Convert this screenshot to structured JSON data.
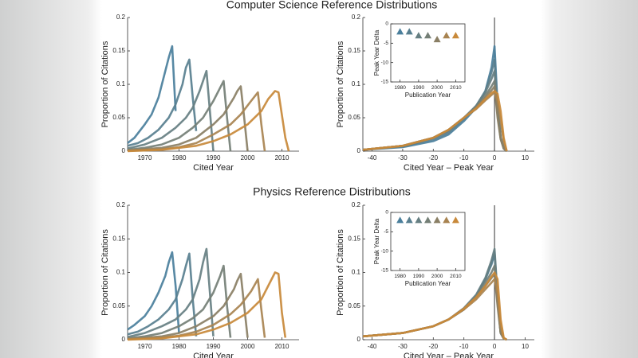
{
  "headings": [
    "Computer Science Reference Distributions",
    "Physics Reference Distributions"
  ],
  "chart_data": [
    {
      "type": "line",
      "ylabel": "Proportion of Citations",
      "xlabel": "Cited Year",
      "xlim": [
        1965,
        2015
      ],
      "xticks": [
        1970,
        1980,
        1990,
        2000,
        2010
      ],
      "ylim": [
        0,
        0.2
      ],
      "yticks": [
        0,
        0.05,
        0.1,
        0.15,
        0.2
      ],
      "series": [
        {
          "color": "#4a7f9c",
          "x": [
            1965,
            1967,
            1970,
            1972,
            1974,
            1976,
            1977,
            1978,
            1979
          ],
          "values": [
            0.012,
            0.02,
            0.04,
            0.055,
            0.08,
            0.12,
            0.14,
            0.157,
            0.06
          ]
        },
        {
          "color": "#587f8f",
          "x": [
            1965,
            1968,
            1971,
            1974,
            1977,
            1979,
            1981,
            1982,
            1983,
            1984,
            1985
          ],
          "values": [
            0.008,
            0.012,
            0.02,
            0.032,
            0.05,
            0.07,
            0.1,
            0.125,
            0.137,
            0.08,
            0.03
          ]
        },
        {
          "color": "#667f82",
          "x": [
            1965,
            1970,
            1975,
            1979,
            1982,
            1984,
            1986,
            1987,
            1988,
            1989,
            1990
          ],
          "values": [
            0.004,
            0.01,
            0.02,
            0.035,
            0.05,
            0.065,
            0.09,
            0.105,
            0.12,
            0.06,
            0
          ]
        },
        {
          "color": "#747f76",
          "x": [
            1965,
            1970,
            1975,
            1980,
            1984,
            1987,
            1990,
            1992,
            1993,
            1994,
            1995
          ],
          "values": [
            0.002,
            0.005,
            0.01,
            0.02,
            0.035,
            0.05,
            0.075,
            0.095,
            0.105,
            0.05,
            0
          ]
        },
        {
          "color": "#8a7f65",
          "x": [
            1965,
            1975,
            1980,
            1985,
            1990,
            1993,
            1996,
            1997,
            1998,
            1999,
            2000
          ],
          "values": [
            0.001,
            0.005,
            0.01,
            0.02,
            0.04,
            0.055,
            0.08,
            0.09,
            0.097,
            0.05,
            0
          ]
        },
        {
          "color": "#a88350",
          "x": [
            1965,
            1975,
            1980,
            1985,
            1990,
            1995,
            1998,
            2001,
            2003,
            2004,
            2005
          ],
          "values": [
            0.001,
            0.003,
            0.006,
            0.012,
            0.025,
            0.04,
            0.055,
            0.075,
            0.088,
            0.04,
            0
          ]
        },
        {
          "color": "#c8893a",
          "x": [
            1965,
            1975,
            1985,
            1990,
            1995,
            2000,
            2004,
            2006,
            2008,
            2009,
            2011,
            2012
          ],
          "values": [
            0,
            0.002,
            0.008,
            0.015,
            0.025,
            0.04,
            0.06,
            0.078,
            0.09,
            0.088,
            0.02,
            0
          ]
        }
      ]
    },
    {
      "type": "line",
      "ylabel": "Proportion of Citations",
      "xlabel": "Cited Year – Peak Year",
      "xlim": [
        -43,
        13
      ],
      "xticks": [
        -40,
        -30,
        -20,
        -10,
        0,
        10
      ],
      "ylim": [
        0,
        0.2
      ],
      "yticks": [
        0,
        0.05,
        0.1,
        0.15,
        0.2
      ],
      "vline": 0,
      "x": [
        -43,
        -30,
        -20,
        -15,
        -10,
        -6,
        -3,
        -1,
        0,
        1,
        2,
        3,
        4
      ],
      "series": [
        {
          "color": "#4a7f9c",
          "values": [
            0.002,
            0.006,
            0.015,
            0.025,
            0.045,
            0.065,
            0.09,
            0.125,
            0.157,
            0.07,
            0.02,
            0.005,
            0
          ]
        },
        {
          "color": "#587f8f",
          "values": [
            0.002,
            0.007,
            0.018,
            0.028,
            0.048,
            0.068,
            0.09,
            0.118,
            0.137,
            0.065,
            0.02,
            0.005,
            0
          ]
        },
        {
          "color": "#667f82",
          "values": [
            0.002,
            0.008,
            0.02,
            0.03,
            0.05,
            0.068,
            0.088,
            0.108,
            0.12,
            0.06,
            0.02,
            0.004,
            0
          ]
        },
        {
          "color": "#747f76",
          "values": [
            0.002,
            0.008,
            0.02,
            0.032,
            0.05,
            0.066,
            0.083,
            0.097,
            0.105,
            0.055,
            0.018,
            0.004,
            0
          ]
        },
        {
          "color": "#8a7f65",
          "values": [
            0.002,
            0.008,
            0.02,
            0.032,
            0.05,
            0.065,
            0.08,
            0.091,
            0.097,
            0.05,
            0.018,
            0.004,
            0
          ]
        },
        {
          "color": "#a88350",
          "values": [
            0.002,
            0.008,
            0.02,
            0.032,
            0.05,
            0.063,
            0.076,
            0.084,
            0.088,
            0.075,
            0.045,
            0.015,
            0
          ]
        },
        {
          "color": "#c8893a",
          "values": [
            0.002,
            0.008,
            0.02,
            0.032,
            0.05,
            0.064,
            0.078,
            0.087,
            0.09,
            0.086,
            0.06,
            0.02,
            0
          ]
        }
      ]
    },
    {
      "type": "scatter",
      "ylabel": "Peak Year Delta",
      "xlabel": "Publication Year",
      "xlim": [
        1975,
        2015
      ],
      "xticks": [
        1980,
        1990,
        2000,
        2010
      ],
      "ylim": [
        -15,
        0
      ],
      "yticks": [
        0,
        -5,
        -10,
        -15
      ],
      "x": [
        1980,
        1985,
        1990,
        1995,
        2000,
        2005,
        2010
      ],
      "values": [
        -2,
        -2,
        -3,
        -3,
        -4,
        -3,
        -3
      ],
      "colors": [
        "#4a7f9c",
        "#587f8f",
        "#667f82",
        "#747f76",
        "#8a7f65",
        "#a88350",
        "#c8893a"
      ]
    },
    {
      "type": "line",
      "ylabel": "Proportion of Citations",
      "xlabel": "Cited Year",
      "xlim": [
        1965,
        2015
      ],
      "xticks": [
        1970,
        1980,
        1990,
        2000,
        2010
      ],
      "ylim": [
        0,
        0.2
      ],
      "yticks": [
        0,
        0.05,
        0.1,
        0.15,
        0.2
      ],
      "series": [
        {
          "color": "#4a7f9c",
          "x": [
            1965,
            1967,
            1970,
            1972,
            1974,
            1976,
            1977,
            1978,
            1979,
            1980
          ],
          "values": [
            0.015,
            0.022,
            0.035,
            0.05,
            0.07,
            0.095,
            0.115,
            0.13,
            0.08,
            0.01
          ]
        },
        {
          "color": "#587f8f",
          "x": [
            1965,
            1968,
            1971,
            1974,
            1977,
            1979,
            1981,
            1982,
            1983,
            1984,
            1985
          ],
          "values": [
            0.008,
            0.012,
            0.02,
            0.03,
            0.045,
            0.06,
            0.09,
            0.11,
            0.128,
            0.06,
            0.005
          ]
        },
        {
          "color": "#667f82",
          "x": [
            1965,
            1970,
            1975,
            1979,
            1982,
            1984,
            1986,
            1987,
            1988,
            1989,
            1990
          ],
          "values": [
            0.004,
            0.01,
            0.02,
            0.03,
            0.045,
            0.06,
            0.09,
            0.115,
            0.135,
            0.07,
            0.005
          ]
        },
        {
          "color": "#747f76",
          "x": [
            1965,
            1970,
            1975,
            1980,
            1984,
            1987,
            1990,
            1992,
            1993,
            1994,
            1995
          ],
          "values": [
            0.002,
            0.005,
            0.01,
            0.02,
            0.032,
            0.045,
            0.07,
            0.095,
            0.11,
            0.05,
            0.003
          ]
        },
        {
          "color": "#8a7f65",
          "x": [
            1965,
            1975,
            1980,
            1985,
            1990,
            1993,
            1996,
            1997,
            1998,
            1999,
            2000
          ],
          "values": [
            0.001,
            0.005,
            0.01,
            0.02,
            0.035,
            0.05,
            0.075,
            0.088,
            0.098,
            0.05,
            0.003
          ]
        },
        {
          "color": "#a88350",
          "x": [
            1965,
            1975,
            1980,
            1985,
            1990,
            1995,
            1998,
            2001,
            2003,
            2004,
            2005
          ],
          "values": [
            0.001,
            0.003,
            0.006,
            0.012,
            0.022,
            0.038,
            0.052,
            0.072,
            0.09,
            0.045,
            0.003
          ]
        },
        {
          "color": "#c8893a",
          "x": [
            1965,
            1975,
            1985,
            1990,
            1995,
            2000,
            2004,
            2006,
            2008,
            2009,
            2010,
            2011
          ],
          "values": [
            0,
            0.002,
            0.008,
            0.015,
            0.025,
            0.04,
            0.06,
            0.08,
            0.1,
            0.098,
            0.04,
            0.003
          ]
        }
      ]
    },
    {
      "type": "line",
      "ylabel": "Proportion of Citations",
      "xlabel": "Cited Year – Peak Year",
      "xlim": [
        -43,
        13
      ],
      "xticks": [
        -40,
        -30,
        -20,
        -10,
        0,
        10
      ],
      "ylim": [
        0,
        0.2
      ],
      "yticks": [
        0,
        0.05,
        0.1,
        0.15,
        0.2
      ],
      "vline": 0,
      "x": [
        -43,
        -30,
        -20,
        -15,
        -10,
        -6,
        -3,
        -1,
        0,
        1,
        2,
        3,
        4
      ],
      "series": [
        {
          "color": "#4a7f9c",
          "values": [
            0.005,
            0.01,
            0.02,
            0.03,
            0.045,
            0.065,
            0.09,
            0.115,
            0.13,
            0.06,
            0.01,
            0.002,
            0
          ]
        },
        {
          "color": "#587f8f",
          "values": [
            0.005,
            0.01,
            0.02,
            0.03,
            0.045,
            0.065,
            0.09,
            0.112,
            0.128,
            0.06,
            0.01,
            0.002,
            0
          ]
        },
        {
          "color": "#667f82",
          "values": [
            0.005,
            0.01,
            0.02,
            0.03,
            0.047,
            0.067,
            0.092,
            0.118,
            0.135,
            0.065,
            0.01,
            0.002,
            0
          ]
        },
        {
          "color": "#747f76",
          "values": [
            0.005,
            0.01,
            0.02,
            0.03,
            0.046,
            0.064,
            0.085,
            0.1,
            0.11,
            0.055,
            0.01,
            0.002,
            0
          ]
        },
        {
          "color": "#8a7f65",
          "values": [
            0.005,
            0.01,
            0.02,
            0.03,
            0.046,
            0.063,
            0.08,
            0.092,
            0.098,
            0.05,
            0.01,
            0.002,
            0
          ]
        },
        {
          "color": "#a88350",
          "values": [
            0.005,
            0.01,
            0.02,
            0.03,
            0.045,
            0.06,
            0.075,
            0.085,
            0.09,
            0.07,
            0.02,
            0.002,
            0
          ]
        },
        {
          "color": "#c8893a",
          "values": [
            0.005,
            0.01,
            0.02,
            0.03,
            0.046,
            0.063,
            0.08,
            0.094,
            0.1,
            0.09,
            0.03,
            0.003,
            0
          ]
        }
      ]
    },
    {
      "type": "scatter",
      "ylabel": "Peak Year Delta",
      "xlabel": "Publication Year",
      "xlim": [
        1975,
        2015
      ],
      "xticks": [
        1980,
        1990,
        2000,
        2010
      ],
      "ylim": [
        -15,
        0
      ],
      "yticks": [
        0,
        -5,
        -10,
        -15
      ],
      "x": [
        1980,
        1985,
        1990,
        1995,
        2000,
        2005,
        2010
      ],
      "values": [
        -2,
        -2,
        -2,
        -2,
        -2,
        -2,
        -2
      ],
      "colors": [
        "#4a7f9c",
        "#587f8f",
        "#667f82",
        "#747f76",
        "#8a7f65",
        "#a88350",
        "#c8893a"
      ]
    }
  ]
}
